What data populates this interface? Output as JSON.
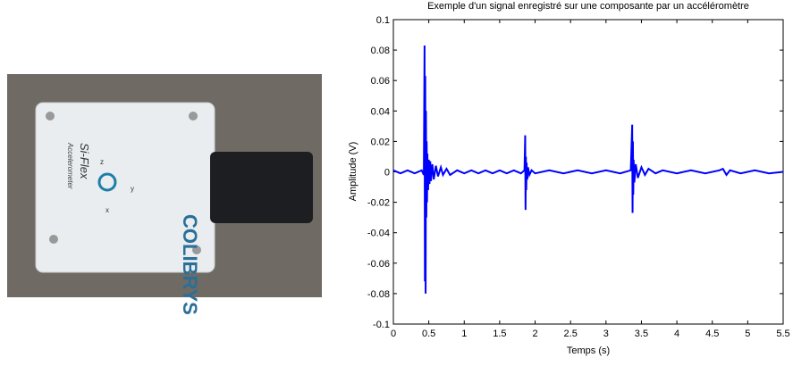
{
  "photo": {
    "brand": "COLIBRYS",
    "model": "Si-Flex",
    "subtitle": "Accelerometer",
    "axis_z": "z",
    "axis_y": "y",
    "axis_x": "x"
  },
  "chart_data": {
    "type": "line",
    "title": "Exemple d'un signal enregistré sur une composante par un accéléromètre",
    "x_label": "Temps (s)",
    "y_label": "Amplitude (V)",
    "xlim": [
      0,
      5.5
    ],
    "xticks": [
      0,
      0.5,
      1,
      1.5,
      2,
      2.5,
      3,
      3.5,
      4,
      4.5,
      5,
      5.5
    ],
    "ylim": [
      -0.1,
      0.1
    ],
    "yticks": [
      -0.1,
      -0.08,
      -0.06,
      -0.04,
      -0.02,
      0,
      0.02,
      0.04,
      0.06,
      0.08,
      0.1
    ],
    "grid": false,
    "series": [
      {
        "color": "#0000ff",
        "x": [
          0,
          0.1,
          0.2,
          0.3,
          0.4,
          0.43,
          0.44,
          0.445,
          0.45,
          0.455,
          0.46,
          0.465,
          0.47,
          0.475,
          0.48,
          0.49,
          0.5,
          0.51,
          0.52,
          0.53,
          0.55,
          0.57,
          0.6,
          0.63,
          0.67,
          0.7,
          0.75,
          0.8,
          0.9,
          1.0,
          1.1,
          1.2,
          1.3,
          1.4,
          1.5,
          1.6,
          1.7,
          1.8,
          1.85,
          1.86,
          1.865,
          1.87,
          1.875,
          1.88,
          1.89,
          1.9,
          1.92,
          1.95,
          2.0,
          2.2,
          2.4,
          2.6,
          2.8,
          3.0,
          3.2,
          3.35,
          3.37,
          3.375,
          3.38,
          3.385,
          3.39,
          3.4,
          3.42,
          3.45,
          3.5,
          3.55,
          3.6,
          3.7,
          3.8,
          4.0,
          4.2,
          4.4,
          4.6,
          4.65,
          4.7,
          4.75,
          4.9,
          5.1,
          5.3,
          5.5
        ],
        "values": [
          0.001,
          -0.001,
          0.001,
          -0.001,
          0.001,
          -0.002,
          0.083,
          -0.072,
          0.063,
          -0.08,
          0.04,
          -0.03,
          0.02,
          -0.02,
          0.012,
          -0.012,
          0.008,
          -0.008,
          0.007,
          -0.006,
          0.005,
          -0.005,
          0.004,
          -0.003,
          0.003,
          -0.002,
          0.002,
          -0.002,
          0.001,
          -0.001,
          0.001,
          -0.001,
          0.001,
          -0.001,
          0.001,
          -0.001,
          0.001,
          -0.001,
          0.001,
          0.024,
          -0.025,
          0.01,
          -0.012,
          0.006,
          -0.005,
          0.003,
          -0.002,
          0.001,
          -0.001,
          0.001,
          -0.001,
          0.001,
          -0.001,
          0.001,
          -0.001,
          0.001,
          0.031,
          -0.027,
          0.02,
          -0.015,
          0.008,
          -0.007,
          0.005,
          -0.004,
          0.003,
          -0.002,
          0.002,
          -0.001,
          0.001,
          -0.001,
          0.001,
          -0.001,
          0.001,
          0.002,
          -0.002,
          0.001,
          -0.001,
          0.001,
          -0.001,
          0
        ]
      }
    ]
  }
}
